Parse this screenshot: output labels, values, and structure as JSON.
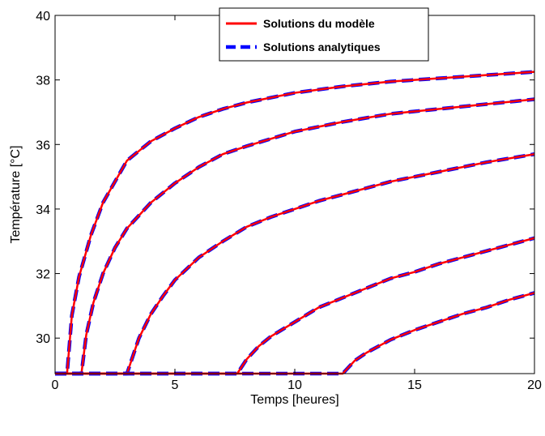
{
  "chart_data": {
    "type": "line",
    "title": "",
    "xlabel": "Temps [heures]",
    "ylabel": "Température [°C]",
    "xlim": [
      0,
      20
    ],
    "ylim": [
      28.9,
      40
    ],
    "xticks": [
      "0",
      "5",
      "10",
      "15",
      "20"
    ],
    "yticks": [
      "30",
      "32",
      "34",
      "36",
      "38",
      "40"
    ],
    "grid": false,
    "legend_position": "top-center",
    "legend": [
      "Solutions du modèle",
      "Solutions analytiques"
    ],
    "colors": {
      "model": "#ff0000",
      "analytic": "#0000ff"
    },
    "baseline": 28.9,
    "curves": [
      {
        "start": 0.5,
        "x": [
          0.5,
          0.7,
          1.0,
          1.5,
          2,
          3,
          4,
          5,
          6,
          7,
          8,
          10,
          12,
          14,
          16,
          18,
          20
        ],
        "y": [
          28.9,
          30.7,
          31.9,
          33.2,
          34.2,
          35.5,
          36.1,
          36.5,
          36.85,
          37.1,
          37.3,
          37.6,
          37.8,
          37.95,
          38.05,
          38.15,
          38.25
        ]
      },
      {
        "start": 1.1,
        "x": [
          1.1,
          1.3,
          1.6,
          2,
          2.5,
          3,
          4,
          5,
          6,
          7,
          8,
          10,
          12,
          14,
          16,
          18,
          20
        ],
        "y": [
          28.9,
          30.1,
          31.1,
          32.0,
          32.8,
          33.4,
          34.2,
          34.8,
          35.3,
          35.7,
          35.95,
          36.4,
          36.7,
          36.95,
          37.1,
          37.25,
          37.4
        ]
      },
      {
        "start": 3.0,
        "x": [
          3.0,
          3.5,
          4,
          4.5,
          5,
          6,
          7,
          8,
          9,
          10,
          11,
          12,
          14,
          16,
          18,
          20
        ],
        "y": [
          28.9,
          30.0,
          30.75,
          31.3,
          31.8,
          32.5,
          33.0,
          33.45,
          33.75,
          34.0,
          34.25,
          34.45,
          34.85,
          35.15,
          35.45,
          35.7
        ]
      },
      {
        "start": 7.6,
        "x": [
          7.6,
          8,
          8.5,
          9,
          10,
          11,
          12,
          13,
          14,
          15,
          16,
          17,
          18,
          19,
          20
        ],
        "y": [
          28.9,
          29.35,
          29.75,
          30.05,
          30.5,
          30.95,
          31.25,
          31.55,
          31.85,
          32.05,
          32.3,
          32.5,
          32.7,
          32.9,
          33.1
        ]
      },
      {
        "start": 12.0,
        "x": [
          12.0,
          12.5,
          13,
          14,
          15,
          16,
          17,
          18,
          19,
          20
        ],
        "y": [
          28.9,
          29.3,
          29.55,
          29.95,
          30.25,
          30.5,
          30.75,
          30.95,
          31.2,
          31.4
        ]
      }
    ]
  }
}
